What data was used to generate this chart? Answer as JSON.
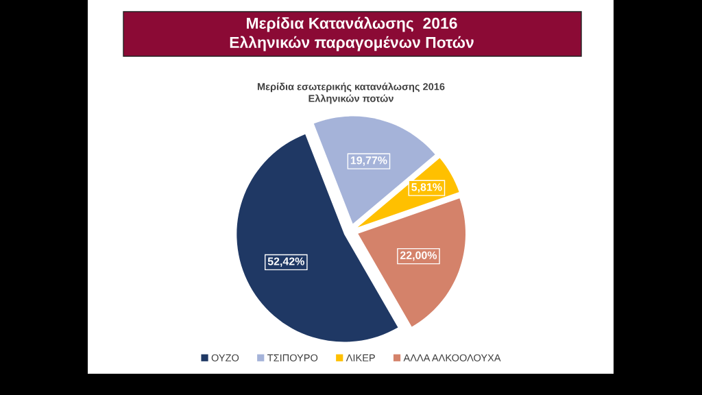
{
  "chart_data": {
    "type": "pie",
    "title": "Μερίδια Κατανάλωσης  2016\nΕλληνικών παραγομένων Ποτών",
    "subtitle": "Μερίδια εσωτερικής κατανάλωσης 2016\nΕλληνικών ποτών",
    "categories": [
      "ΟΥΖΟ",
      "ΤΣΙΠΟΥΡΟ",
      "ΛΙΚΕΡ",
      "ΑΛΛΑ ΑΛΚΟΟΛΟΥΧΑ"
    ],
    "values": [
      52.42,
      19.77,
      5.81,
      22.0
    ],
    "colors": [
      "#1f3864",
      "#a5b3d9",
      "#ffc000",
      "#d4826a"
    ],
    "value_labels": [
      "52,42%",
      "19,77%",
      "5,81%",
      "22,00%"
    ],
    "legend": "bottom"
  }
}
